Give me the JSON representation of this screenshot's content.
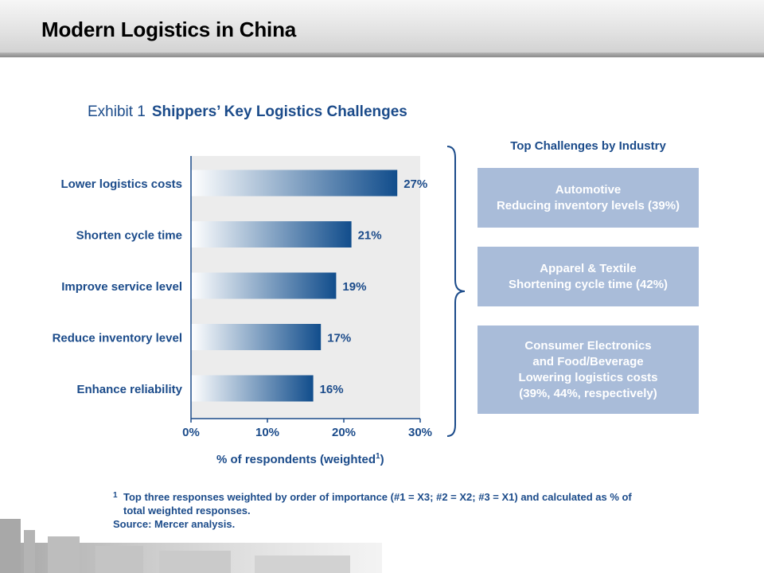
{
  "slide": {
    "title": "Modern Logistics in China"
  },
  "exhibit": {
    "label": "Exhibit 1",
    "title": "Shippers’ Key Logistics Challenges"
  },
  "chart_data": {
    "type": "bar",
    "orientation": "horizontal",
    "categories": [
      "Lower logistics costs",
      "Shorten cycle time",
      "Improve service level",
      "Reduce inventory level",
      "Enhance reliability"
    ],
    "values": [
      27,
      21,
      19,
      17,
      16
    ],
    "value_labels": [
      "27%",
      "21%",
      "19%",
      "17%",
      "16%"
    ],
    "xlim": [
      0,
      30
    ],
    "xticks": [
      "0%",
      "10%",
      "20%",
      "30%"
    ],
    "xlabel": "% of respondents (weighted",
    "xlabel_sup": "1",
    "bar_color_start": "#ffffff",
    "bar_color_end": "#114d8c",
    "grid": false
  },
  "industry": {
    "heading": "Top Challenges by Industry",
    "boxes": [
      {
        "lines": [
          "Automotive",
          "Reducing inventory levels (39%)"
        ]
      },
      {
        "lines": [
          "Apparel & Textile",
          "Shortening cycle time (42%)"
        ]
      },
      {
        "lines": [
          "Consumer Electronics",
          "and Food/Beverage",
          "Lowering logistics costs",
          "(39%, 44%, respectively)"
        ]
      }
    ],
    "box_color": "#a9bcd9"
  },
  "footnote": {
    "marker": "1",
    "line1": "Top three responses weighted by order of importance (#1 = X3; #2 = X2; #3 = X1) and calculated as % of",
    "line2": "total weighted responses.",
    "source": "Source: Mercer analysis."
  },
  "colors": {
    "accent": "#1b4b8a",
    "axis": "#1b4b8a"
  }
}
